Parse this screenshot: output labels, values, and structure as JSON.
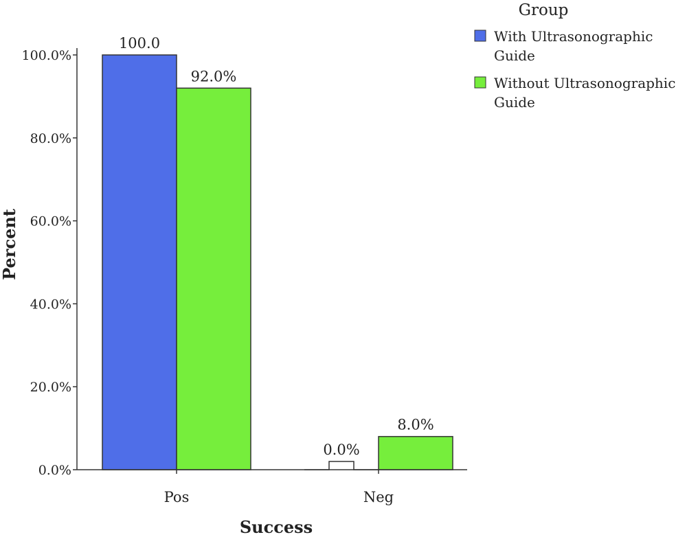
{
  "chart_data": {
    "type": "bar",
    "categories": [
      "Pos",
      "Neg"
    ],
    "series": [
      {
        "name": "With Ultrasonographic Guide",
        "legend_lines": [
          "With Ultrasonographic",
          "Guide"
        ],
        "color": "#4f6ee8",
        "values": [
          100.0,
          0.0
        ],
        "labels": [
          "100.0",
          "0.0%"
        ]
      },
      {
        "name": "Without Ultrasonographic Guide",
        "legend_lines": [
          "Without Ultrasonographic",
          "Guide"
        ],
        "color": "#76ee3c",
        "values": [
          92.0,
          8.0
        ],
        "labels": [
          "92.0%",
          "8.0%"
        ]
      }
    ],
    "xlabel": "Success",
    "ylabel": "Percent",
    "ylim": [
      0,
      100
    ],
    "yticks": [
      0,
      20,
      40,
      60,
      80,
      100
    ],
    "ytick_labels": [
      "0.0%",
      "20.0%",
      "40.0%",
      "60.0%",
      "80.0%",
      "100.0%"
    ],
    "legend_title": "Group",
    "legend_position": "top-right",
    "grid": false
  }
}
